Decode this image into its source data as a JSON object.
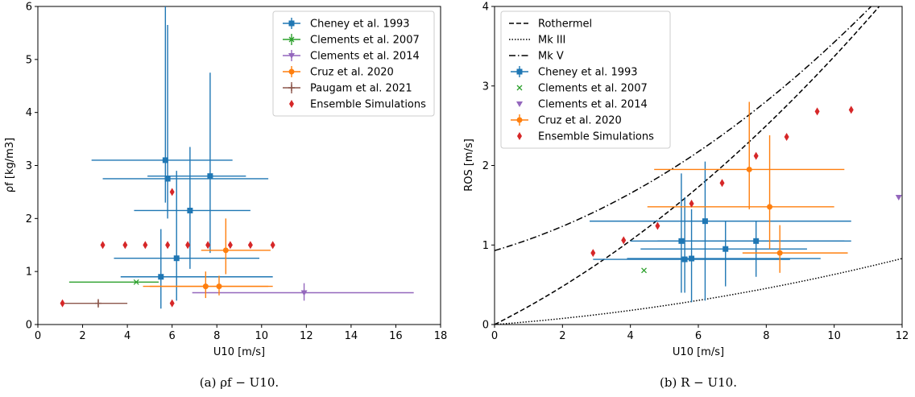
{
  "colors": {
    "cheney": "#1f77b4",
    "clements2007": "#2ca02c",
    "clements2014": "#9467bd",
    "cruz": "#ff7f0e",
    "paugam": "#8c564b",
    "ensemble": "#d62728"
  },
  "chart_data": [
    {
      "type": "scatter",
      "xlabel": "U10 [m/s]",
      "ylabel": "ρf [kg/m3]",
      "xlim": [
        0,
        18
      ],
      "ylim": [
        0,
        6
      ],
      "xticks": [
        0,
        2,
        4,
        6,
        8,
        10,
        12,
        14,
        16,
        18
      ],
      "yticks": [
        0,
        1,
        2,
        3,
        4,
        5,
        6
      ],
      "legend_position": "top-right",
      "grid": false,
      "caption": "(a) ρf − U10.",
      "series": [
        {
          "name": "Cheney et al. 1993",
          "color_key": "cheney",
          "marker": "square",
          "points": [
            {
              "x": 5.7,
              "y": 3.1,
              "xerr": [
                2.4,
                8.7
              ],
              "yerr": [
                2.3,
                6.0
              ]
            },
            {
              "x": 5.8,
              "y": 2.75,
              "xerr": [
                2.9,
                10.3
              ],
              "yerr": [
                2.0,
                5.65
              ]
            },
            {
              "x": 7.7,
              "y": 2.8,
              "xerr": [
                4.9,
                9.3
              ],
              "yerr": [
                1.35,
                4.75
              ]
            },
            {
              "x": 6.8,
              "y": 2.15,
              "xerr": [
                4.3,
                9.5
              ],
              "yerr": [
                1.05,
                3.35
              ]
            },
            {
              "x": 6.2,
              "y": 1.25,
              "xerr": [
                3.4,
                9.9
              ],
              "yerr": [
                0.45,
                2.9
              ]
            },
            {
              "x": 5.5,
              "y": 0.9,
              "xerr": [
                3.7,
                10.5
              ],
              "yerr": [
                0.3,
                1.8
              ]
            }
          ]
        },
        {
          "name": "Clements et al. 2007",
          "color_key": "clements2007",
          "marker": "x",
          "points": [
            {
              "x": 4.4,
              "y": 0.8,
              "xerr": [
                1.4,
                5.4
              ],
              "yerr": [
                0.8,
                0.8
              ]
            }
          ]
        },
        {
          "name": "Clements et al. 2014",
          "color_key": "clements2014",
          "marker": "triangle",
          "points": [
            {
              "x": 11.9,
              "y": 0.6,
              "xerr": [
                6.9,
                16.8
              ],
              "yerr": [
                0.45,
                0.78
              ]
            }
          ]
        },
        {
          "name": "Cruz et al. 2020",
          "color_key": "cruz",
          "marker": "circle",
          "points": [
            {
              "x": 8.4,
              "y": 1.4,
              "xerr": [
                7.3,
                10.4
              ],
              "yerr": [
                0.95,
                2.0
              ]
            },
            {
              "x": 7.5,
              "y": 0.72,
              "xerr": [
                4.7,
                10.3
              ],
              "yerr": [
                0.5,
                1.0
              ]
            },
            {
              "x": 8.1,
              "y": 0.72,
              "xerr": [
                5.0,
                10.5
              ],
              "yerr": [
                0.55,
                0.92
              ]
            }
          ]
        },
        {
          "name": "Paugam et al. 2021",
          "color_key": "paugam",
          "marker": "plus",
          "points": [
            {
              "x": 2.7,
              "y": 0.4,
              "xerr": [
                1.2,
                4.0
              ],
              "yerr": [
                0.32,
                0.48
              ]
            }
          ]
        },
        {
          "name": "Ensemble Simulations",
          "color_key": "ensemble",
          "marker": "diamond",
          "points": [
            {
              "x": 1.1,
              "y": 0.4
            },
            {
              "x": 2.9,
              "y": 1.5
            },
            {
              "x": 3.9,
              "y": 1.5
            },
            {
              "x": 4.8,
              "y": 1.5
            },
            {
              "x": 5.8,
              "y": 1.5
            },
            {
              "x": 6.7,
              "y": 1.5
            },
            {
              "x": 7.6,
              "y": 1.5
            },
            {
              "x": 8.6,
              "y": 1.5
            },
            {
              "x": 9.5,
              "y": 1.5
            },
            {
              "x": 10.5,
              "y": 1.5
            },
            {
              "x": 6.0,
              "y": 2.5
            },
            {
              "x": 6.0,
              "y": 0.4
            }
          ]
        }
      ]
    },
    {
      "type": "scatter",
      "xlabel": "U10 [m/s]",
      "ylabel": "ROS [m/s]",
      "xlim": [
        0,
        12
      ],
      "ylim": [
        0,
        4
      ],
      "xticks": [
        0,
        2,
        4,
        6,
        8,
        10,
        12
      ],
      "yticks": [
        0,
        1,
        2,
        3,
        4
      ],
      "legend_position": "top-left",
      "grid": false,
      "caption": "(b) R − U10.",
      "lines": [
        {
          "name": "Rothermel",
          "dash": "dashed",
          "formula": "rothermel"
        },
        {
          "name": "Mk III",
          "dash": "dotted",
          "formula": "mk3"
        },
        {
          "name": "Mk V",
          "dash": "dashdot",
          "formula": "mk5"
        }
      ],
      "series": [
        {
          "name": "Cheney et al. 1993",
          "color_key": "cheney",
          "marker": "square",
          "points": [
            {
              "x": 6.2,
              "y": 1.3,
              "xerr": [
                2.8,
                10.5
              ],
              "yerr": [
                0.3,
                2.05
              ]
            },
            {
              "x": 5.5,
              "y": 1.05,
              "xerr": [
                4.0,
                10.3
              ],
              "yerr": [
                0.4,
                1.9
              ]
            },
            {
              "x": 7.7,
              "y": 1.05,
              "xerr": [
                4.8,
                10.5
              ],
              "yerr": [
                0.6,
                1.3
              ]
            },
            {
              "x": 6.8,
              "y": 0.95,
              "xerr": [
                4.3,
                9.2
              ],
              "yerr": [
                0.48,
                1.3
              ]
            },
            {
              "x": 5.6,
              "y": 0.82,
              "xerr": [
                2.9,
                8.7
              ],
              "yerr": [
                0.4,
                1.6
              ]
            },
            {
              "x": 5.8,
              "y": 0.83,
              "xerr": [
                3.9,
                9.6
              ],
              "yerr": [
                0.28,
                1.45
              ]
            }
          ]
        },
        {
          "name": "Clements et al. 2007",
          "color_key": "clements2007",
          "marker": "x",
          "points": [
            {
              "x": 4.4,
              "y": 0.68
            }
          ]
        },
        {
          "name": "Clements et al. 2014",
          "color_key": "clements2014",
          "marker": "triangle",
          "points": [
            {
              "x": 11.9,
              "y": 1.6
            }
          ]
        },
        {
          "name": "Cruz et al. 2020",
          "color_key": "cruz",
          "marker": "circle",
          "points": [
            {
              "x": 7.5,
              "y": 1.95,
              "xerr": [
                4.7,
                10.3
              ],
              "yerr": [
                1.45,
                2.8
              ]
            },
            {
              "x": 8.1,
              "y": 1.48,
              "xerr": [
                4.5,
                10.0
              ],
              "yerr": [
                0.95,
                2.38
              ]
            },
            {
              "x": 8.4,
              "y": 0.9,
              "xerr": [
                7.3,
                10.4
              ],
              "yerr": [
                0.65,
                1.25
              ]
            }
          ]
        },
        {
          "name": "Ensemble Simulations",
          "color_key": "ensemble",
          "marker": "diamond",
          "points": [
            {
              "x": 2.9,
              "y": 0.9
            },
            {
              "x": 3.8,
              "y": 1.06
            },
            {
              "x": 4.8,
              "y": 1.24
            },
            {
              "x": 5.8,
              "y": 1.52
            },
            {
              "x": 6.7,
              "y": 1.78
            },
            {
              "x": 7.7,
              "y": 2.12
            },
            {
              "x": 8.6,
              "y": 2.36
            },
            {
              "x": 9.5,
              "y": 2.68
            },
            {
              "x": 10.5,
              "y": 2.7
            }
          ]
        }
      ]
    }
  ]
}
